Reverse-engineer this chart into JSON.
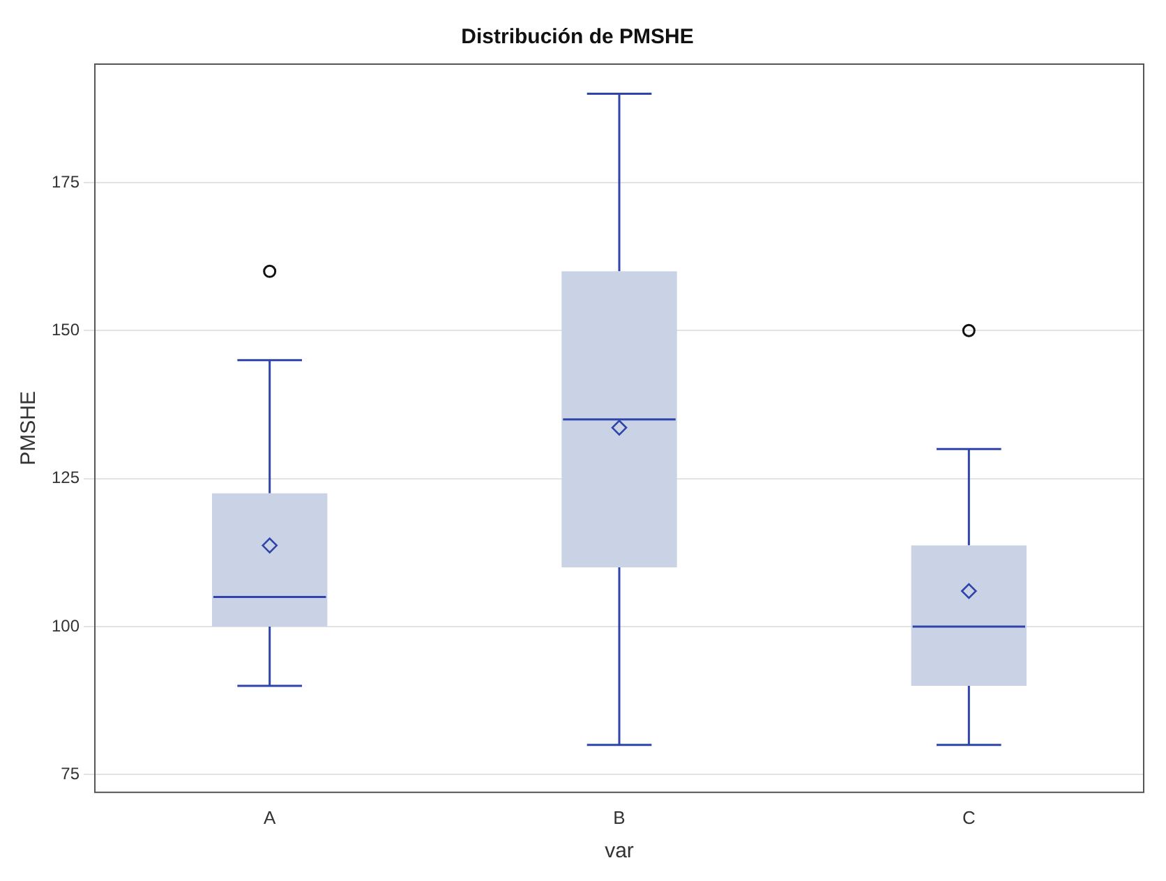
{
  "chart_data": {
    "type": "box",
    "title": "Distribución de PMSHE",
    "xlabel": "var",
    "ylabel": "PMSHE",
    "categories": [
      "A",
      "B",
      "C"
    ],
    "color": "#cad3e6",
    "boxes": [
      {
        "low": 90,
        "q1": 100,
        "median": 105,
        "q3": 122.5,
        "high": 145,
        "mean": 113.7,
        "outliers": [
          160
        ]
      },
      {
        "low": 80,
        "q1": 110,
        "median": 135,
        "q3": 160,
        "high": 190,
        "mean": 133.6
      },
      {
        "low": 80,
        "q1": 90,
        "median": 100,
        "q3": 113.7,
        "high": 130,
        "mean": 106,
        "outliers": [
          150
        ]
      }
    ],
    "ylim": [
      72,
      195
    ],
    "yticks": [
      75,
      100,
      125,
      150,
      175
    ],
    "grid": "y",
    "legend": false
  }
}
